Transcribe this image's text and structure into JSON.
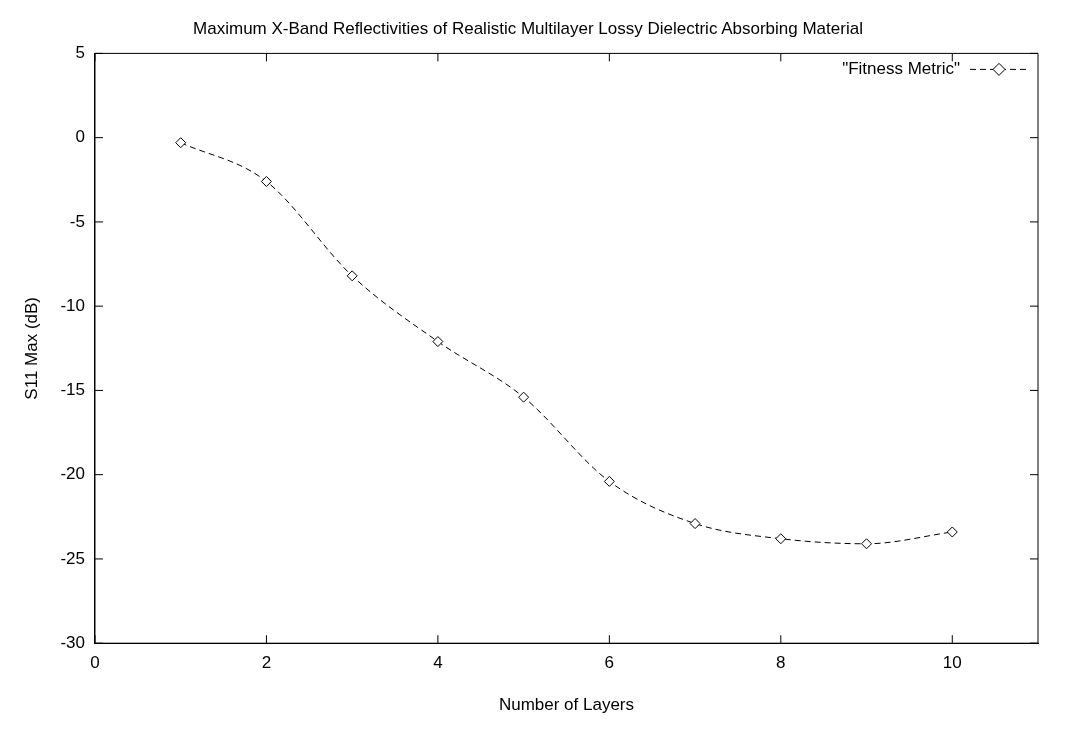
{
  "chart_data": {
    "type": "line",
    "title": "Maximum X-Band Reflectivities of Realistic Multilayer Lossy Dielectric Absorbing Material",
    "xlabel": "Number of Layers",
    "ylabel": "S11 Max (dB)",
    "x": [
      1,
      2,
      3,
      4,
      5,
      6,
      7,
      8,
      9,
      10
    ],
    "series": [
      {
        "name": "\"Fitness Metric\"",
        "color": "#000000",
        "values": [
          -0.3,
          -2.6,
          -8.2,
          -12.1,
          -15.4,
          -20.4,
          -22.9,
          -23.8,
          -24.1,
          -23.4
        ]
      }
    ],
    "xlim": [
      0,
      11
    ],
    "xticks": [
      0,
      2,
      4,
      6,
      8,
      10
    ],
    "ylim": [
      -30,
      5
    ],
    "yticks": [
      -30,
      -25,
      -20,
      -15,
      -10,
      -5,
      0,
      5
    ],
    "grid": false,
    "legend": "top right",
    "marker": "diamond",
    "line_style": "dashed"
  }
}
